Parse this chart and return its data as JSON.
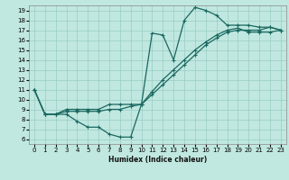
{
  "xlabel": "Humidex (Indice chaleur)",
  "xlim": [
    -0.5,
    23.5
  ],
  "ylim": [
    5.5,
    19.5
  ],
  "xticks": [
    0,
    1,
    2,
    3,
    4,
    5,
    6,
    7,
    8,
    9,
    10,
    11,
    12,
    13,
    14,
    15,
    16,
    17,
    18,
    19,
    20,
    21,
    22,
    23
  ],
  "yticks": [
    6,
    7,
    8,
    9,
    10,
    11,
    12,
    13,
    14,
    15,
    16,
    17,
    18,
    19
  ],
  "bg_color": "#c0e8e0",
  "grid_color": "#98ccc4",
  "line_color": "#1a6860",
  "line1": {
    "x": [
      0,
      1,
      2,
      3,
      4,
      5,
      6,
      7,
      8,
      9,
      10,
      11,
      12,
      13,
      14,
      15,
      16,
      17,
      18,
      19,
      20,
      21,
      22,
      23
    ],
    "y": [
      11,
      8.5,
      8.5,
      8.5,
      7.8,
      7.2,
      7.2,
      6.5,
      6.2,
      6.2,
      9.5,
      16.7,
      16.5,
      14.0,
      18.0,
      19.3,
      19.0,
      18.5,
      17.5,
      17.5,
      17.5,
      17.3,
      17.3,
      17.0
    ]
  },
  "line2": {
    "x": [
      0,
      1,
      2,
      3,
      4,
      5,
      6,
      7,
      8,
      9,
      10,
      11,
      12,
      13,
      14,
      15,
      16,
      17,
      18,
      19,
      20,
      21,
      22,
      23
    ],
    "y": [
      11,
      8.5,
      8.5,
      8.8,
      8.8,
      8.8,
      8.8,
      9.0,
      9.0,
      9.3,
      9.5,
      10.5,
      11.5,
      12.5,
      13.5,
      14.5,
      15.5,
      16.2,
      16.8,
      17.0,
      17.0,
      17.0,
      17.3,
      17.0
    ]
  },
  "line3": {
    "x": [
      0,
      1,
      2,
      3,
      4,
      5,
      6,
      7,
      8,
      9,
      10,
      11,
      12,
      13,
      14,
      15,
      16,
      17,
      18,
      19,
      20,
      21,
      22,
      23
    ],
    "y": [
      11,
      8.5,
      8.5,
      9.0,
      9.0,
      9.0,
      9.0,
      9.5,
      9.5,
      9.5,
      9.5,
      10.8,
      12.0,
      13.0,
      14.0,
      15.0,
      15.8,
      16.5,
      17.0,
      17.2,
      16.8,
      16.8,
      16.8,
      17.0
    ]
  }
}
